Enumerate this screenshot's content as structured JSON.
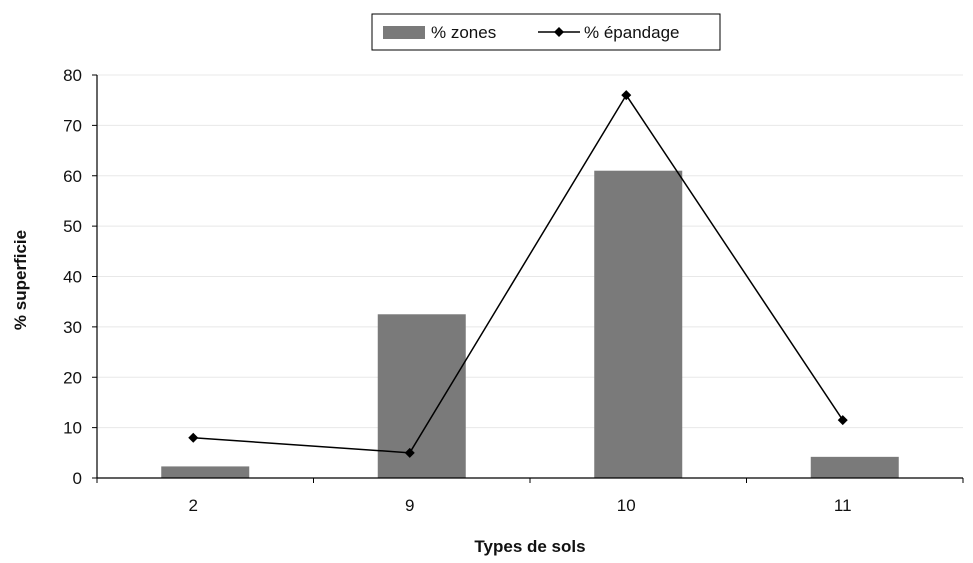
{
  "chart_data": {
    "type": "bar",
    "categories": [
      "2",
      "9",
      "10",
      "11"
    ],
    "series": [
      {
        "name": "% zones",
        "type": "bar",
        "values": [
          2.3,
          32.5,
          61,
          4.2
        ],
        "color": "#7a7a7a"
      },
      {
        "name": "% épandage",
        "type": "line",
        "values": [
          8,
          5,
          76,
          11.5
        ],
        "color": "#000000"
      }
    ],
    "xlabel": "Types de sols",
    "ylabel": "% superficie",
    "ylim": [
      0,
      80
    ],
    "yticks": [
      0,
      10,
      20,
      30,
      40,
      50,
      60,
      70,
      80
    ],
    "grid": true,
    "legend_position": "top-center"
  }
}
